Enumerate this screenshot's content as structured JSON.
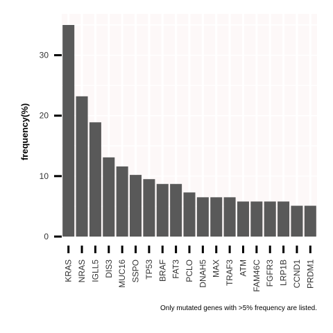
{
  "chart_data": {
    "type": "bar",
    "title": "",
    "xlabel": "",
    "ylabel": "frequency(%)",
    "caption": "Only mutated genes with >5% frequency are listed.",
    "ylim": [
      0,
      35
    ],
    "yticks": [
      0,
      10,
      20,
      30
    ],
    "grid": true,
    "colors": {
      "bar": "#595959",
      "panel": "#fdf8f8",
      "grid": "#ffffff",
      "ticks": "#000000"
    },
    "categories": [
      "KRAS",
      "NRAS",
      "IGLL5",
      "DIS3",
      "MUC16",
      "SSPO",
      "TP53",
      "BRAF",
      "FAT3",
      "PCLO",
      "DNAH5",
      "MAX",
      "TRAF3",
      "ATM",
      "FAM46C",
      "FGFR3",
      "LRP1B",
      "CCND1",
      "PRDM1"
    ],
    "values": [
      35.0,
      23.2,
      18.9,
      13.1,
      11.6,
      10.2,
      9.5,
      8.7,
      8.7,
      7.3,
      6.5,
      6.5,
      6.5,
      5.8,
      5.8,
      5.8,
      5.8,
      5.1,
      5.1
    ]
  }
}
